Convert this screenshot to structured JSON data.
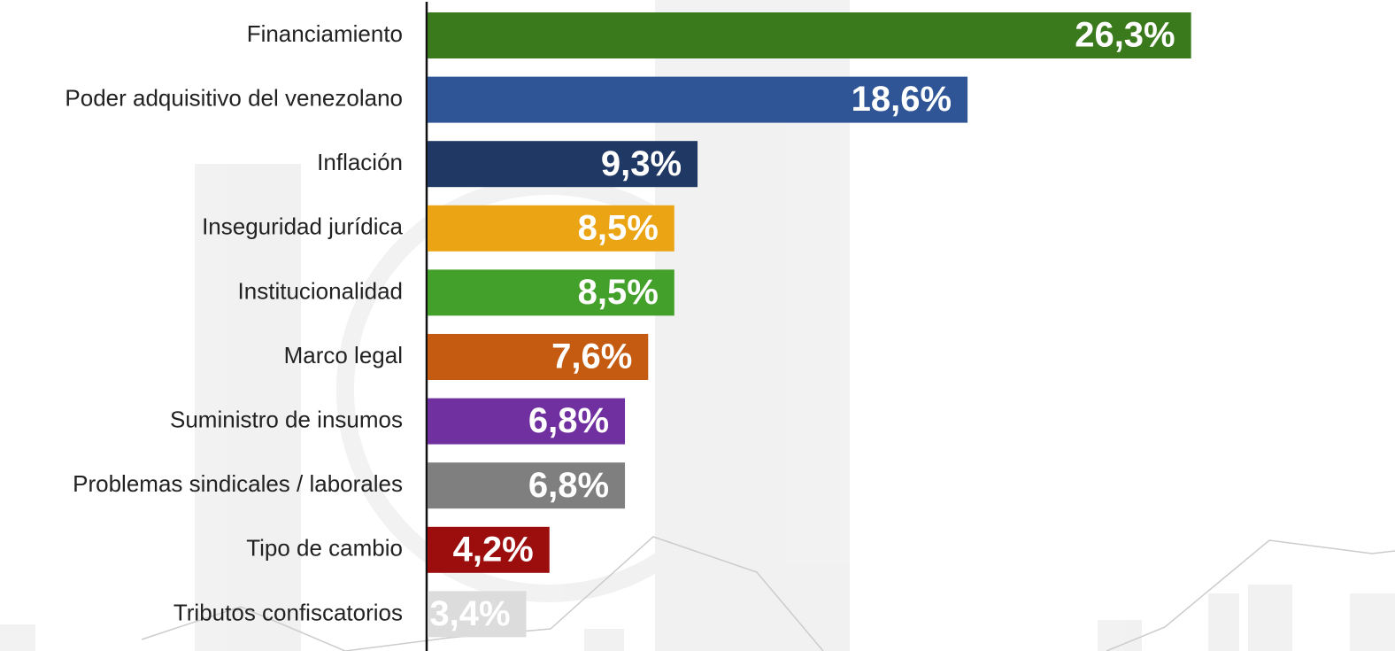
{
  "chart_data": {
    "type": "bar",
    "orientation": "horizontal",
    "categories": [
      "Financiamiento",
      "Poder adquisitivo del venezolano",
      "Inflación",
      "Inseguridad jurídica",
      "Institucionalidad",
      "Marco legal",
      "Suministro de insumos",
      "Problemas sindicales / laborales",
      "Tipo de cambio",
      "Tributos confiscatorios"
    ],
    "values": [
      26.3,
      18.6,
      9.3,
      8.5,
      8.5,
      7.6,
      6.8,
      6.8,
      4.2,
      3.4
    ],
    "value_labels": [
      "26,3%",
      "18,6%",
      "9,3%",
      "8,5%",
      "8,5%",
      "7,6%",
      "6,8%",
      "6,8%",
      "4,2%",
      "3,4%"
    ],
    "colors": [
      "#3a7a1c",
      "#2f5597",
      "#1f3864",
      "#eba414",
      "#43a02a",
      "#c55a11",
      "#7030a0",
      "#7f7f7f",
      "#9c0e0e",
      "#dcdcdc"
    ]
  }
}
